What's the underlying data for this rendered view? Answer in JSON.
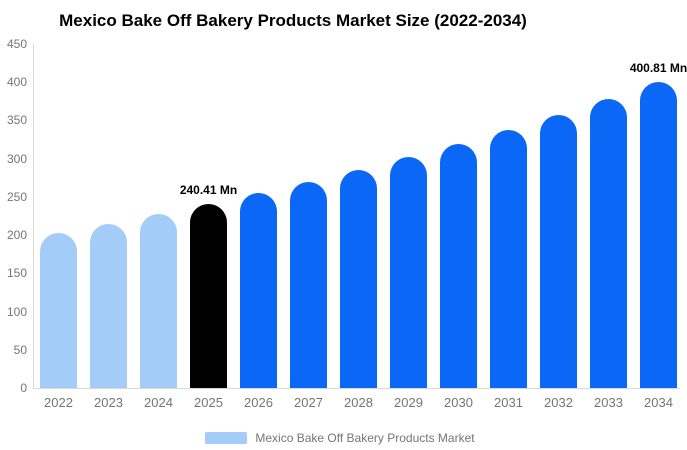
{
  "title": "Mexico Bake Off Bakery Products Market Size (2022-2034)",
  "colors": {
    "light_blue": "#a3ccf9",
    "black": "#000000",
    "blue": "#0b67f5",
    "axis_line": "#d9d9d9",
    "tick_text": "#757575",
    "annotation_text": "#000000"
  },
  "legend": {
    "label": "Mexico Bake Off Bakery Products Market",
    "swatch_color": "#a3ccf9"
  },
  "chart_data": {
    "type": "bar",
    "title": "Mexico Bake Off Bakery Products Market Size (2022-2034)",
    "categories": [
      "2022",
      "2023",
      "2024",
      "2025",
      "2026",
      "2027",
      "2028",
      "2029",
      "2030",
      "2031",
      "2032",
      "2033",
      "2034"
    ],
    "values": [
      202.75,
      214.6,
      227.1,
      240.41,
      254.46,
      269.33,
      285.07,
      301.73,
      319.37,
      338.03,
      357.79,
      378.7,
      400.81
    ],
    "bar_color_keys": [
      "light_blue",
      "light_blue",
      "light_blue",
      "black",
      "blue",
      "blue",
      "blue",
      "blue",
      "blue",
      "blue",
      "blue",
      "blue",
      "blue"
    ],
    "unit": "Mn",
    "annotations": [
      {
        "category": "2025",
        "text": "240.41 Mn"
      },
      {
        "category": "2034",
        "text": "400.81 Mn"
      }
    ],
    "xlabel": "",
    "ylabel": "",
    "ylim": [
      0,
      450
    ],
    "yticks": [
      0,
      50,
      100,
      150,
      200,
      250,
      300,
      350,
      400,
      450
    ],
    "grid": false,
    "legend_position": "bottom"
  }
}
